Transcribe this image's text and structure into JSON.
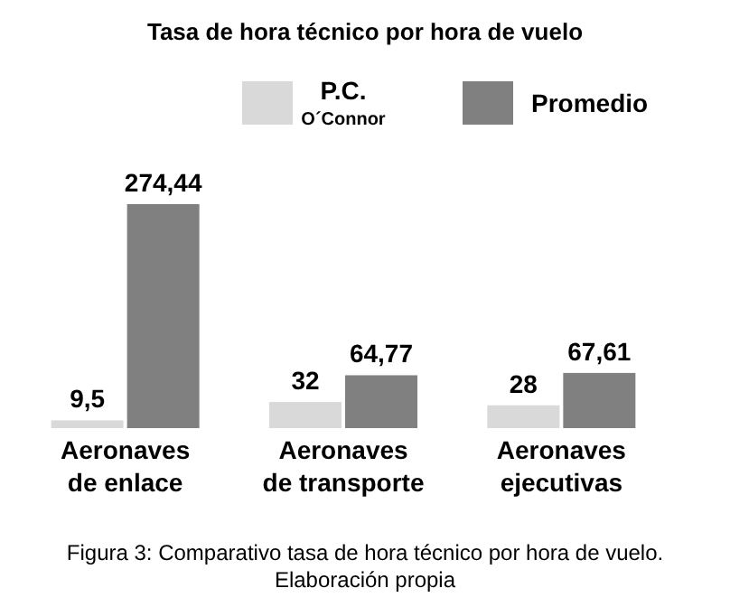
{
  "chart_data": {
    "type": "bar",
    "title": "Tasa de hora técnico por hora de vuelo",
    "categories": [
      "Aeronaves de enlace",
      "Aeronaves de transporte",
      "Aeronaves ejecutivas"
    ],
    "series": [
      {
        "name": "P.C. O´Connor",
        "color": "#d9d9d9",
        "values": [
          9.5,
          32,
          28
        ],
        "value_labels": [
          "9,5",
          "32",
          "28"
        ]
      },
      {
        "name": "Promedio",
        "color": "#808080",
        "values": [
          274.44,
          64.77,
          67.61
        ],
        "value_labels": [
          "274,44",
          "64,77",
          "67,61"
        ]
      }
    ],
    "legend": "top",
    "annotations": [
      "Figura 3: Comparativo tasa de hora técnico por hora de vuelo.",
      "Elaboración propia"
    ]
  }
}
